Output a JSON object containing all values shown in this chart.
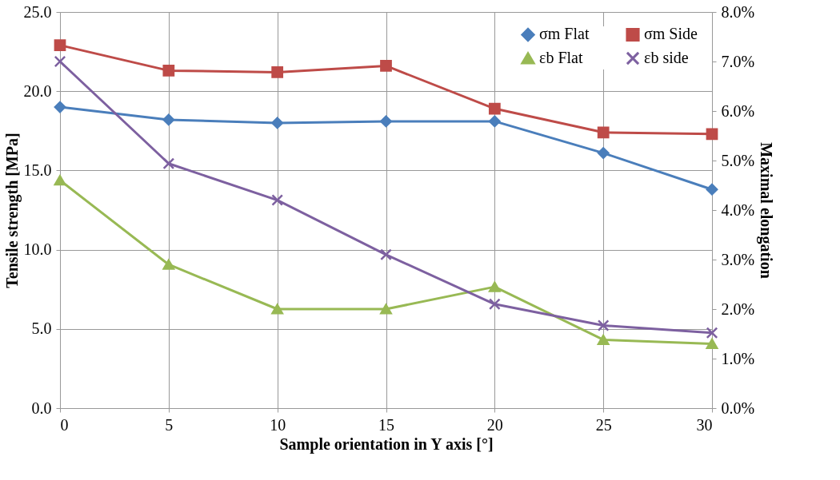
{
  "chart_data": {
    "type": "line",
    "xlabel": "Sample orientation in Y axis [°]",
    "ylabel": "Tensile strength [MPa]",
    "y2label": "Maximal elongation",
    "x": [
      0,
      5,
      10,
      15,
      20,
      25,
      30
    ],
    "series": [
      {
        "name": "σm Flat",
        "color": "#4a7ebb",
        "marker": "diamond",
        "values": [
          19.0,
          18.2,
          18.0,
          18.1,
          18.1,
          16.1,
          13.8
        ]
      },
      {
        "name": "σm Side",
        "color": "#be4b48",
        "marker": "square",
        "values": [
          22.9,
          21.3,
          21.2,
          21.6,
          18.9,
          17.4,
          17.3
        ]
      },
      {
        "name": "εb Flat",
        "color": "#98b954",
        "marker": "triangle",
        "axis": "y2",
        "values": [
          4.6,
          2.9,
          2.0,
          2.0,
          2.45,
          1.38,
          1.3
        ]
      },
      {
        "name": "εb side",
        "color": "#7d60a0",
        "marker": "cross",
        "axis": "y2",
        "values": [
          7.0,
          4.94,
          4.2,
          3.1,
          2.1,
          1.67,
          1.52
        ]
      }
    ],
    "xlim": [
      0,
      30
    ],
    "xticks": [
      0,
      5,
      10,
      15,
      20,
      25,
      30
    ],
    "ylim": [
      0,
      25
    ],
    "yticks": [
      {
        "value": 0,
        "label": "0.0"
      },
      {
        "value": 5,
        "label": "5.0"
      },
      {
        "value": 10,
        "label": "10.0"
      },
      {
        "value": 15,
        "label": "15.0"
      },
      {
        "value": 20,
        "label": "20.0"
      },
      {
        "value": 25,
        "label": "25.0"
      }
    ],
    "y2lim": [
      0,
      8
    ],
    "y2ticks": [
      {
        "value": 0,
        "label": "0.0%"
      },
      {
        "value": 1,
        "label": "1.0%"
      },
      {
        "value": 2,
        "label": "2.0%"
      },
      {
        "value": 3,
        "label": "3.0%"
      },
      {
        "value": 4,
        "label": "4.0%"
      },
      {
        "value": 5,
        "label": "5.0%"
      },
      {
        "value": 6,
        "label": "6.0%"
      },
      {
        "value": 7,
        "label": "7.0%"
      },
      {
        "value": 8,
        "label": "8.0%"
      }
    ],
    "grid": true,
    "legend": "top right",
    "line_style": "solid"
  }
}
